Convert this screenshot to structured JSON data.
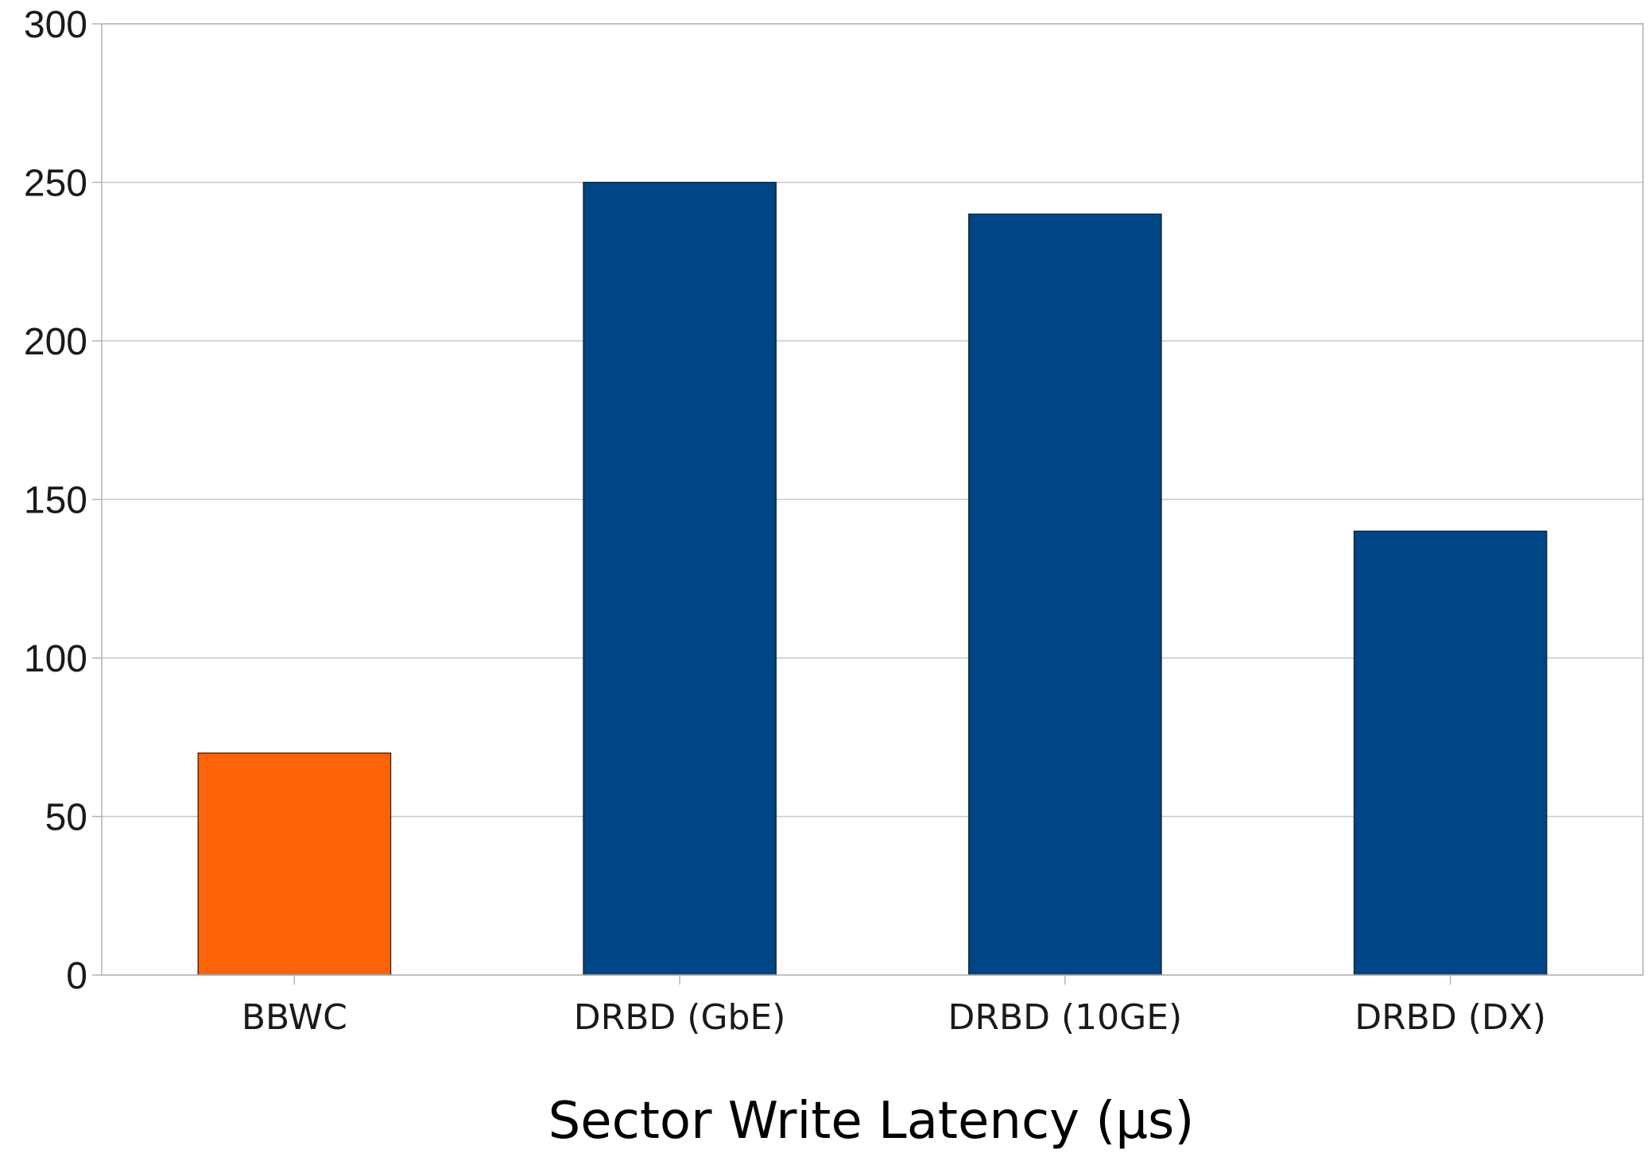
{
  "chart_data": {
    "type": "bar",
    "title": "",
    "xlabel": "Sector Write Latency (µs)",
    "ylabel": "",
    "categories": [
      "BBWC",
      "DRBD (GbE)",
      "DRBD (10GE)",
      "DRBD (DX)"
    ],
    "values": [
      70,
      250,
      240,
      140
    ],
    "bar_colors": [
      "#ff6309",
      "#004586",
      "#004586",
      "#004586"
    ],
    "ylim": [
      0,
      300
    ],
    "yticks": [
      "0",
      "50",
      "100",
      "150",
      "200",
      "250",
      "300"
    ],
    "grid": true,
    "legend": "none"
  }
}
